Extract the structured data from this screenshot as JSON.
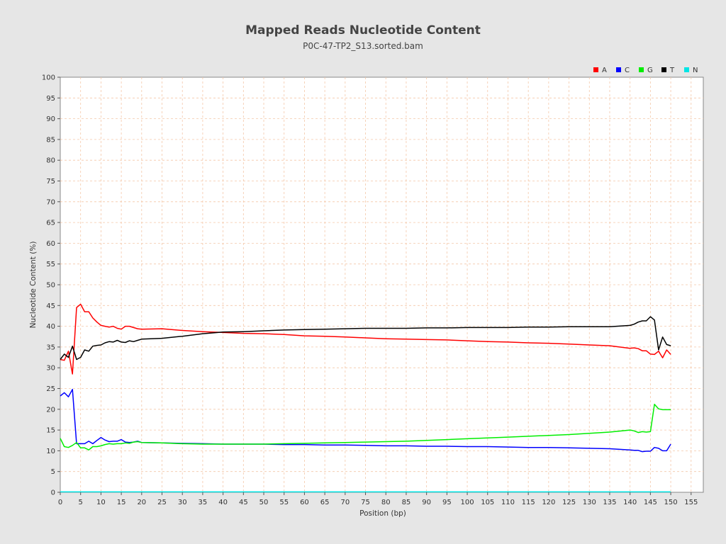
{
  "chart_data": {
    "type": "line",
    "title": "Mapped Reads Nucleotide Content",
    "subtitle": "P0C-47-TP2_S13.sorted.bam",
    "xlabel": "Position (bp)",
    "ylabel": "Nucleotide Content (%)",
    "xlim": [
      0,
      158
    ],
    "ylim": [
      0,
      100
    ],
    "x_ticks": [
      "0",
      "5",
      "10",
      "15",
      "20",
      "25",
      "30",
      "35",
      "40",
      "45",
      "50",
      "55",
      "60",
      "65",
      "70",
      "75",
      "80",
      "85",
      "90",
      "95",
      "100",
      "105",
      "110",
      "115",
      "120",
      "125",
      "130",
      "135",
      "140",
      "145",
      "150",
      "155"
    ],
    "y_ticks": [
      "0",
      "5",
      "10",
      "15",
      "20",
      "25",
      "30",
      "35",
      "40",
      "45",
      "50",
      "55",
      "60",
      "65",
      "70",
      "75",
      "80",
      "85",
      "90",
      "95",
      "100"
    ],
    "grid": true,
    "legend_position": "top-right",
    "series": [
      {
        "name": "A",
        "color": "#ff0000",
        "x": [
          0,
          1,
          2,
          3,
          4,
          5,
          6,
          7,
          8,
          9,
          10,
          11,
          12,
          13,
          14,
          15,
          16,
          17,
          18,
          19,
          20,
          25,
          30,
          35,
          40,
          45,
          50,
          55,
          60,
          65,
          70,
          75,
          80,
          85,
          90,
          95,
          100,
          105,
          110,
          115,
          120,
          125,
          130,
          135,
          140,
          141,
          142,
          143,
          144,
          145,
          146,
          147,
          148,
          149,
          150
        ],
        "values": [
          32,
          31.8,
          34,
          28.5,
          44.5,
          45.3,
          43.5,
          43.5,
          42,
          41,
          40.2,
          40,
          39.8,
          40,
          39.5,
          39.3,
          40,
          40,
          39.7,
          39.4,
          39.3,
          39.4,
          39,
          38.7,
          38.5,
          38.3,
          38.2,
          38,
          37.7,
          37.6,
          37.4,
          37.2,
          37,
          36.9,
          36.8,
          36.7,
          36.5,
          36.3,
          36.2,
          36,
          35.9,
          35.7,
          35.5,
          35.3,
          34.7,
          34.8,
          34.6,
          34.1,
          34.1,
          33.3,
          33.2,
          34,
          32.4,
          34.3,
          33.2
        ]
      },
      {
        "name": "C",
        "color": "#0000ff",
        "x": [
          0,
          1,
          2,
          3,
          4,
          5,
          6,
          7,
          8,
          9,
          10,
          11,
          12,
          13,
          14,
          15,
          16,
          17,
          18,
          19,
          20,
          25,
          30,
          35,
          40,
          45,
          50,
          55,
          60,
          65,
          70,
          75,
          80,
          85,
          90,
          95,
          100,
          105,
          110,
          115,
          120,
          125,
          130,
          135,
          140,
          141,
          142,
          143,
          144,
          145,
          146,
          147,
          148,
          149,
          150
        ],
        "values": [
          23.2,
          24,
          23,
          24.8,
          11.7,
          11.7,
          11.7,
          12.3,
          11.7,
          12.5,
          13.2,
          12.6,
          12.2,
          12.3,
          12.3,
          12.7,
          12.1,
          12,
          12.1,
          12.3,
          12,
          11.9,
          11.8,
          11.7,
          11.6,
          11.6,
          11.6,
          11.5,
          11.5,
          11.4,
          11.4,
          11.3,
          11.2,
          11.2,
          11.1,
          11.1,
          11,
          11,
          10.9,
          10.8,
          10.8,
          10.7,
          10.6,
          10.5,
          10.2,
          10.1,
          10.1,
          9.8,
          9.9,
          9.9,
          10.8,
          10.6,
          10,
          10,
          11.6
        ]
      },
      {
        "name": "G",
        "color": "#00ee00",
        "x": [
          0,
          1,
          2,
          3,
          4,
          5,
          6,
          7,
          8,
          9,
          10,
          11,
          12,
          13,
          14,
          15,
          16,
          17,
          18,
          19,
          20,
          25,
          30,
          35,
          40,
          45,
          50,
          55,
          60,
          65,
          70,
          75,
          80,
          85,
          90,
          95,
          100,
          105,
          110,
          115,
          120,
          125,
          130,
          135,
          140,
          141,
          142,
          143,
          144,
          145,
          146,
          147,
          148,
          149,
          150
        ],
        "values": [
          13,
          11,
          10.8,
          11.3,
          12,
          10.7,
          10.7,
          10.2,
          11,
          11,
          11.2,
          11.5,
          11.7,
          11.6,
          11.7,
          11.7,
          11.9,
          11.8,
          12.1,
          12.2,
          12,
          11.9,
          11.7,
          11.6,
          11.6,
          11.6,
          11.6,
          11.7,
          11.8,
          11.9,
          12,
          12.1,
          12.2,
          12.3,
          12.5,
          12.7,
          12.9,
          13.1,
          13.3,
          13.5,
          13.7,
          13.9,
          14.2,
          14.5,
          15,
          14.8,
          14.4,
          14.6,
          14.5,
          14.6,
          21.2,
          20.1,
          19.9,
          19.9,
          19.9
        ]
      },
      {
        "name": "T",
        "color": "#000000",
        "x": [
          0,
          1,
          2,
          3,
          4,
          5,
          6,
          7,
          8,
          9,
          10,
          11,
          12,
          13,
          14,
          15,
          16,
          17,
          18,
          19,
          20,
          25,
          30,
          35,
          40,
          45,
          50,
          55,
          60,
          65,
          70,
          75,
          80,
          85,
          90,
          95,
          100,
          105,
          110,
          115,
          120,
          125,
          130,
          135,
          140,
          141,
          142,
          143,
          144,
          145,
          146,
          147,
          148,
          149,
          150
        ],
        "values": [
          32,
          33.3,
          32.5,
          35.2,
          32,
          32.5,
          34.3,
          34,
          35.2,
          35.4,
          35.5,
          36,
          36.3,
          36.2,
          36.6,
          36.2,
          36.1,
          36.5,
          36.3,
          36.6,
          36.9,
          37.1,
          37.6,
          38.2,
          38.6,
          38.7,
          38.9,
          39.1,
          39.2,
          39.3,
          39.4,
          39.5,
          39.5,
          39.5,
          39.6,
          39.6,
          39.7,
          39.7,
          39.7,
          39.8,
          39.8,
          39.9,
          39.9,
          39.9,
          40.2,
          40.5,
          41,
          41.3,
          41.3,
          42.3,
          41.5,
          34.3,
          37.4,
          35.6,
          35.3
        ]
      },
      {
        "name": "N",
        "color": "#00e5e5",
        "x": [
          0,
          150
        ],
        "values": [
          0.1,
          0.1
        ]
      }
    ]
  }
}
